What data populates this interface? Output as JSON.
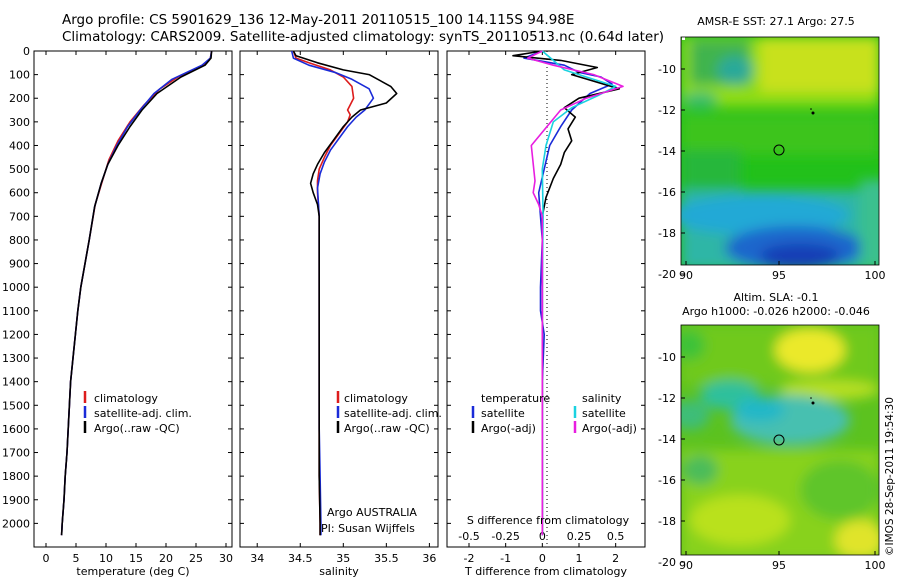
{
  "header": {
    "line1": "Argo profile: CS 5901629_136 12-May-2011 20110515_100 14.115S 94.98E",
    "line2": "Climatology: CARS2009. Satellite-adjusted climatology: synTS_20110513.nc (0.64d later)"
  },
  "colors": {
    "climatology": "#dd1c1c",
    "satellite": "#1a2bd8",
    "argo": "#000000",
    "argo_s": "#e81ee0",
    "sat_s": "#1ad2e0"
  },
  "chart_data": [
    {
      "type": "line",
      "xlabel": "temperature (deg C)",
      "xticks": [
        0,
        5,
        10,
        15,
        20,
        25,
        30
      ],
      "xlim": [
        -2,
        31
      ],
      "ylim": [
        0,
        2100
      ],
      "yticks": [
        0,
        100,
        200,
        300,
        400,
        500,
        600,
        700,
        800,
        900,
        1000,
        1100,
        1200,
        1300,
        1400,
        1500,
        1600,
        1700,
        1800,
        1900,
        2000
      ],
      "legend": [
        "climatology",
        "satellite-adj. clim.",
        "Argo(..raw -QC)"
      ],
      "series": [
        {
          "name": "climatology",
          "color": "#dd1c1c",
          "points": [
            [
              27.6,
              0
            ],
            [
              27.4,
              30
            ],
            [
              26.2,
              60
            ],
            [
              22,
              110
            ],
            [
              19,
              160
            ],
            [
              16.3,
              230
            ],
            [
              14,
              300
            ],
            [
              12,
              380
            ],
            [
              10.5,
              460
            ],
            [
              9.4,
              550
            ],
            [
              8.2,
              650
            ],
            [
              7.2,
              800
            ],
            [
              6.5,
              900
            ],
            [
              5.8,
              1000
            ],
            [
              5.3,
              1100
            ],
            [
              4.9,
              1200
            ],
            [
              4.5,
              1300
            ],
            [
              4.1,
              1400
            ],
            [
              3.9,
              1500
            ],
            [
              3.7,
              1600
            ],
            [
              3.5,
              1700
            ],
            [
              3.2,
              1800
            ],
            [
              3.0,
              1900
            ],
            [
              2.7,
              2000
            ],
            [
              2.6,
              2050
            ]
          ]
        },
        {
          "name": "satellite-adj. clim.",
          "color": "#1a2bd8",
          "points": [
            [
              27.6,
              0
            ],
            [
              27.4,
              30
            ],
            [
              26,
              60
            ],
            [
              21,
              120
            ],
            [
              18,
              180
            ],
            [
              15.7,
              250
            ],
            [
              13.6,
              320
            ],
            [
              11.8,
              400
            ],
            [
              10.3,
              480
            ],
            [
              9.2,
              560
            ],
            [
              8.1,
              660
            ],
            [
              7.2,
              800
            ],
            [
              6.5,
              900
            ],
            [
              5.8,
              1000
            ],
            [
              5.3,
              1100
            ],
            [
              4.9,
              1200
            ],
            [
              4.5,
              1300
            ],
            [
              4.1,
              1400
            ],
            [
              3.9,
              1500
            ],
            [
              3.7,
              1600
            ],
            [
              3.5,
              1700
            ],
            [
              3.2,
              1800
            ],
            [
              3.0,
              1900
            ],
            [
              2.7,
              2000
            ],
            [
              2.6,
              2050
            ]
          ]
        },
        {
          "name": "Argo(..raw -QC)",
          "color": "#000000",
          "points": [
            [
              27.6,
              0
            ],
            [
              27.5,
              30
            ],
            [
              26.5,
              60
            ],
            [
              22.5,
              110
            ],
            [
              18.5,
              180
            ],
            [
              16,
              250
            ],
            [
              14,
              320
            ],
            [
              12,
              400
            ],
            [
              10.3,
              480
            ],
            [
              9.2,
              560
            ],
            [
              8.1,
              660
            ],
            [
              7.2,
              800
            ],
            [
              6.5,
              900
            ],
            [
              5.8,
              1000
            ],
            [
              5.3,
              1100
            ],
            [
              4.9,
              1200
            ],
            [
              4.5,
              1300
            ],
            [
              4.1,
              1400
            ],
            [
              3.9,
              1500
            ],
            [
              3.7,
              1600
            ],
            [
              3.5,
              1700
            ],
            [
              3.2,
              1800
            ],
            [
              3.0,
              1900
            ],
            [
              2.7,
              2000
            ],
            [
              2.6,
              2050
            ]
          ]
        }
      ]
    },
    {
      "type": "line",
      "xlabel": "salinity",
      "xticks": [
        34,
        34.5,
        35,
        35.5,
        36
      ],
      "xlim": [
        33.8,
        36.1
      ],
      "ylim": [
        0,
        2100
      ],
      "legend": [
        "climatology",
        "satellite-adj. clim.",
        "Argo(..raw -QC)"
      ],
      "annotation": [
        "Argo AUSTRALIA",
        "PI: Susan Wijffels"
      ],
      "series": [
        {
          "name": "climatology",
          "color": "#dd1c1c",
          "points": [
            [
              34.42,
              0
            ],
            [
              34.45,
              30
            ],
            [
              34.6,
              50
            ],
            [
              34.85,
              80
            ],
            [
              35.0,
              110
            ],
            [
              35.1,
              150
            ],
            [
              35.12,
              200
            ],
            [
              35.05,
              250
            ],
            [
              35.08,
              270
            ],
            [
              35.05,
              300
            ],
            [
              34.95,
              350
            ],
            [
              34.85,
              400
            ],
            [
              34.78,
              450
            ],
            [
              34.72,
              500
            ],
            [
              34.7,
              550
            ],
            [
              34.7,
              600
            ],
            [
              34.72,
              700
            ],
            [
              34.72,
              800
            ],
            [
              34.72,
              900
            ],
            [
              34.72,
              1000
            ],
            [
              34.72,
              1200
            ],
            [
              34.72,
              1400
            ],
            [
              34.72,
              1600
            ],
            [
              34.72,
              1800
            ],
            [
              34.73,
              2000
            ],
            [
              34.73,
              2050
            ]
          ]
        },
        {
          "name": "satellite-adj. clim.",
          "color": "#1a2bd8",
          "points": [
            [
              34.4,
              0
            ],
            [
              34.42,
              30
            ],
            [
              34.6,
              60
            ],
            [
              34.9,
              90
            ],
            [
              35.1,
              120
            ],
            [
              35.3,
              160
            ],
            [
              35.35,
              200
            ],
            [
              35.25,
              250
            ],
            [
              35.15,
              280
            ],
            [
              35.05,
              320
            ],
            [
              34.95,
              370
            ],
            [
              34.85,
              420
            ],
            [
              34.78,
              470
            ],
            [
              34.73,
              520
            ],
            [
              34.7,
              580
            ],
            [
              34.72,
              700
            ],
            [
              34.72,
              800
            ],
            [
              34.72,
              1000
            ],
            [
              34.72,
              1200
            ],
            [
              34.72,
              1400
            ],
            [
              34.72,
              1600
            ],
            [
              34.73,
              1800
            ],
            [
              34.74,
              2000
            ],
            [
              34.74,
              2050
            ]
          ]
        },
        {
          "name": "Argo(..raw -QC)",
          "color": "#000000",
          "points": [
            [
              34.42,
              0
            ],
            [
              34.45,
              20
            ],
            [
              34.7,
              50
            ],
            [
              35.0,
              80
            ],
            [
              35.3,
              100
            ],
            [
              35.55,
              150
            ],
            [
              35.62,
              180
            ],
            [
              35.5,
              220
            ],
            [
              35.2,
              250
            ],
            [
              35.1,
              280
            ],
            [
              35.0,
              320
            ],
            [
              34.88,
              380
            ],
            [
              34.78,
              430
            ],
            [
              34.7,
              480
            ],
            [
              34.65,
              520
            ],
            [
              34.62,
              560
            ],
            [
              34.65,
              600
            ],
            [
              34.7,
              650
            ],
            [
              34.72,
              700
            ],
            [
              34.72,
              800
            ],
            [
              34.72,
              1000
            ],
            [
              34.72,
              1200
            ],
            [
              34.72,
              1400
            ],
            [
              34.72,
              1600
            ],
            [
              34.72,
              1800
            ],
            [
              34.73,
              2000
            ],
            [
              34.73,
              2050
            ]
          ]
        }
      ]
    },
    {
      "type": "line",
      "xlabel": "T difference from climatology",
      "toplabel": "S difference from climatology",
      "xticks": [
        -2,
        -1,
        0,
        1,
        2
      ],
      "topticks": [
        "-0.5",
        "-0.25",
        "0",
        "0.25",
        "0.5"
      ],
      "xlim": [
        -2.6,
        2.8
      ],
      "ylim": [
        0,
        2100
      ],
      "legend_t_title": "temperature",
      "legend_s_title": "salinity",
      "legend_t": [
        "satellite",
        "Argo(-adj)"
      ],
      "legend_s": [
        "satellite",
        "Argo(-adj)"
      ],
      "series": [
        {
          "name": "satellite",
          "color": "#1a2bd8",
          "points": [
            [
              0,
              0
            ],
            [
              -0.5,
              30
            ],
            [
              0.6,
              60
            ],
            [
              1.0,
              90
            ],
            [
              1.6,
              110
            ],
            [
              1.9,
              140
            ],
            [
              1.3,
              180
            ],
            [
              0.8,
              250
            ],
            [
              0.5,
              320
            ],
            [
              0.2,
              400
            ],
            [
              0.05,
              500
            ],
            [
              -0.1,
              600
            ],
            [
              0,
              800
            ],
            [
              -0.05,
              1000
            ],
            [
              -0.05,
              1100
            ],
            [
              0.05,
              1200
            ],
            [
              0,
              1400
            ],
            [
              0,
              1600
            ],
            [
              0,
              1800
            ],
            [
              0,
              2050
            ]
          ]
        },
        {
          "name": "Argo(-adj)",
          "color": "#000000",
          "points": [
            [
              0,
              0
            ],
            [
              -0.8,
              20
            ],
            [
              0.5,
              40
            ],
            [
              1.5,
              70
            ],
            [
              0.8,
              100
            ],
            [
              2.1,
              160
            ],
            [
              1.0,
              200
            ],
            [
              0.6,
              240
            ],
            [
              0.9,
              280
            ],
            [
              0.7,
              330
            ],
            [
              0.8,
              380
            ],
            [
              0.6,
              430
            ],
            [
              0.5,
              480
            ],
            [
              0.3,
              540
            ],
            [
              0.1,
              620
            ],
            [
              0,
              700
            ],
            [
              0,
              900
            ],
            [
              0,
              1200
            ],
            [
              0,
              1600
            ],
            [
              0,
              2050
            ]
          ]
        },
        {
          "name": "satellite",
          "color": "#1ad2e0",
          "points": [
            [
              0,
              0
            ],
            [
              0.3,
              40
            ],
            [
              0.6,
              80
            ],
            [
              1.2,
              110
            ],
            [
              2.0,
              150
            ],
            [
              1.5,
              190
            ],
            [
              0.8,
              240
            ],
            [
              0.3,
              300
            ],
            [
              0.1,
              400
            ],
            [
              0,
              500
            ],
            [
              0.02,
              700
            ],
            [
              0,
              1000
            ],
            [
              0,
              1400
            ],
            [
              0,
              2050
            ]
          ]
        },
        {
          "name": "Argo(-adj)",
          "color": "#e81ee0",
          "points": [
            [
              0,
              0
            ],
            [
              -0.4,
              30
            ],
            [
              0.3,
              60
            ],
            [
              1.4,
              100
            ],
            [
              2.2,
              150
            ],
            [
              1.2,
              200
            ],
            [
              0.5,
              250
            ],
            [
              -0.3,
              400
            ],
            [
              -0.2,
              550
            ],
            [
              -0.25,
              600
            ],
            [
              -0.1,
              650
            ],
            [
              0,
              700
            ],
            [
              0,
              900
            ],
            [
              0,
              1200
            ],
            [
              0,
              1600
            ],
            [
              0,
              2050
            ]
          ]
        }
      ]
    }
  ],
  "maps": {
    "top": {
      "title": "AMSR-E SST: 27.1  Argo: 27.5",
      "yticks": [
        "-10",
        "-12",
        "-14",
        "-16",
        "-18",
        "-20"
      ],
      "xticks": [
        "90",
        "95",
        "100"
      ]
    },
    "bottom": {
      "title1": "Altim. SLA: -0.1",
      "title2": "Argo h1000: -0.026 h2000: -0.046",
      "yticks": [
        "-10",
        "-12",
        "-14",
        "-16",
        "-18",
        "-20"
      ],
      "xticks": [
        "90",
        "95",
        "100"
      ]
    }
  },
  "footer": "©IMOS 28-Sep-2011 19:54:30"
}
